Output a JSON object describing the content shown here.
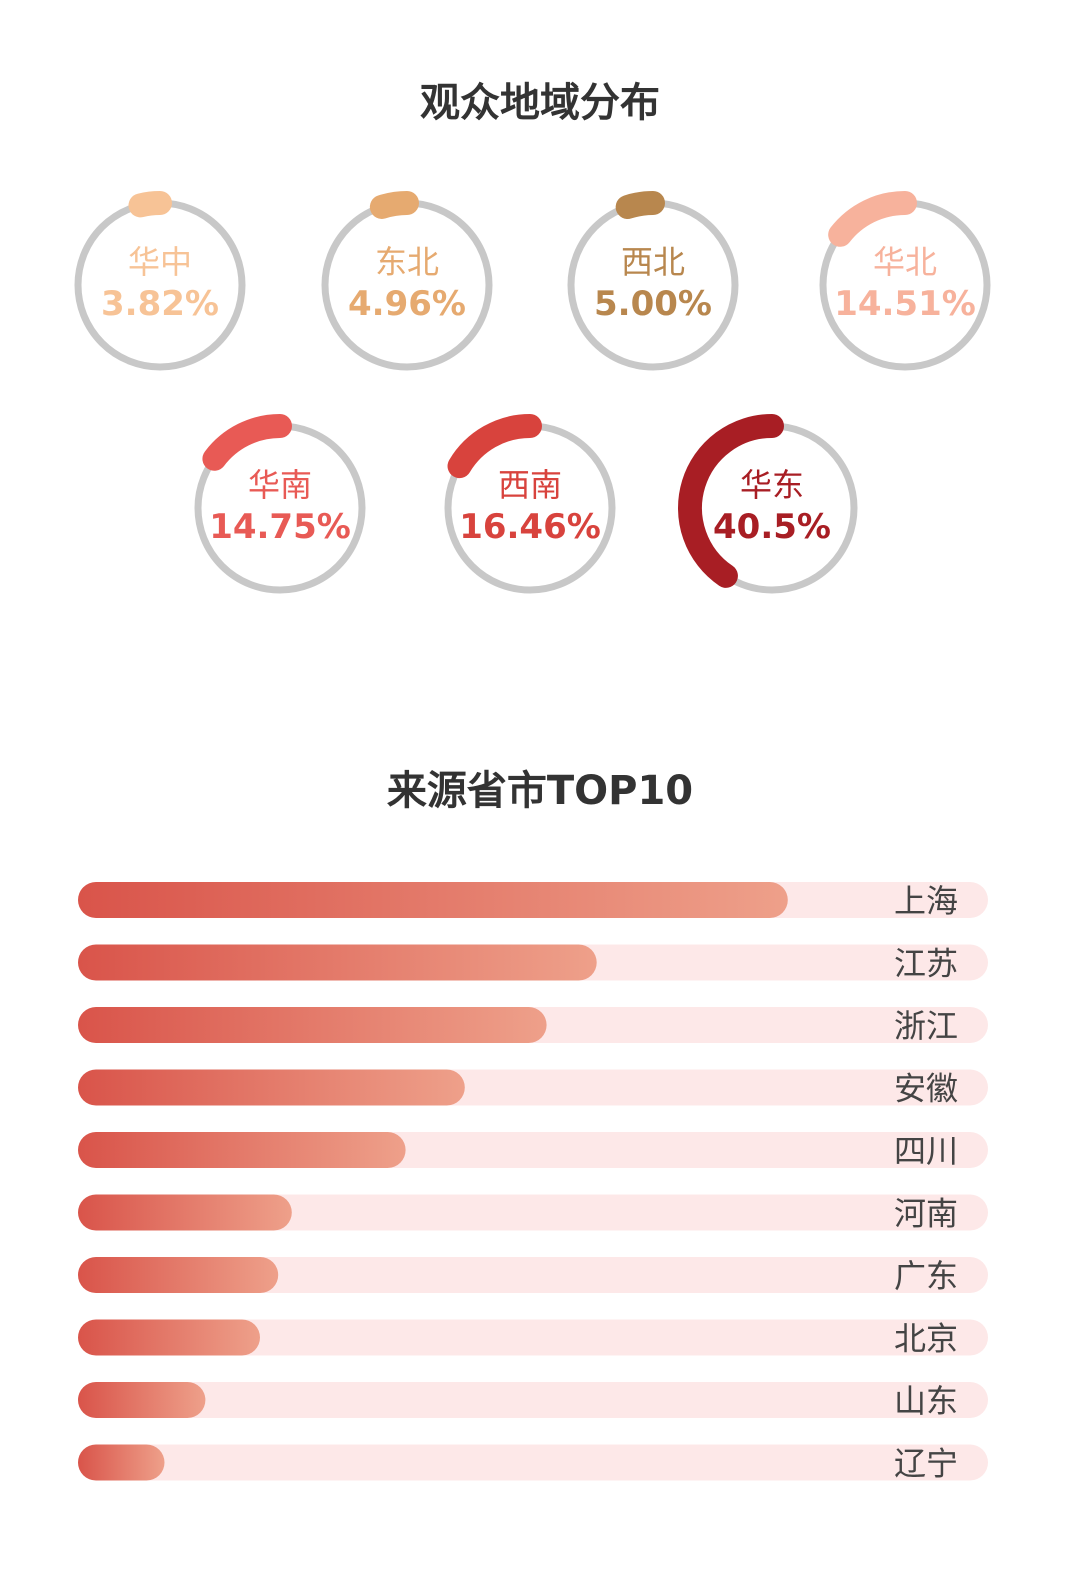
{
  "section_region_title": "观众地域分布",
  "section_top10_title": "来源省市TOP10",
  "colors": {
    "ring_track": "#c8c8c8",
    "bar_track": "#fde8e8",
    "bar_start": "#d9544a",
    "bar_end": "#eea08a"
  },
  "chart_data": [
    {
      "type": "pie",
      "title": "观众地域分布",
      "series": [
        {
          "name": "华中",
          "value": 3.82,
          "value_label": "3.82%",
          "color": "#f7c396"
        },
        {
          "name": "东北",
          "value": 4.96,
          "value_label": "4.96%",
          "color": "#e6aa70"
        },
        {
          "name": "西北",
          "value": 5.0,
          "value_label": "5.00%",
          "color": "#b8874e"
        },
        {
          "name": "华北",
          "value": 14.51,
          "value_label": "14.51%",
          "color": "#f7b29c"
        },
        {
          "name": "华南",
          "value": 14.75,
          "value_label": "14.75%",
          "color": "#e85a55"
        },
        {
          "name": "西南",
          "value": 16.46,
          "value_label": "16.46%",
          "color": "#d8433d"
        },
        {
          "name": "华东",
          "value": 40.5,
          "value_label": "40.5%",
          "color": "#a81e24"
        }
      ]
    },
    {
      "type": "bar",
      "title": "来源省市TOP10",
      "orientation": "horizontal",
      "categories": [
        "上海",
        "江苏",
        "浙江",
        "安徽",
        "四川",
        "河南",
        "广东",
        "北京",
        "山东",
        "辽宁"
      ],
      "values": [
        78,
        57,
        51.5,
        42.5,
        36,
        23.5,
        22,
        20,
        14,
        9.5
      ],
      "xlim": [
        0,
        100
      ]
    }
  ]
}
